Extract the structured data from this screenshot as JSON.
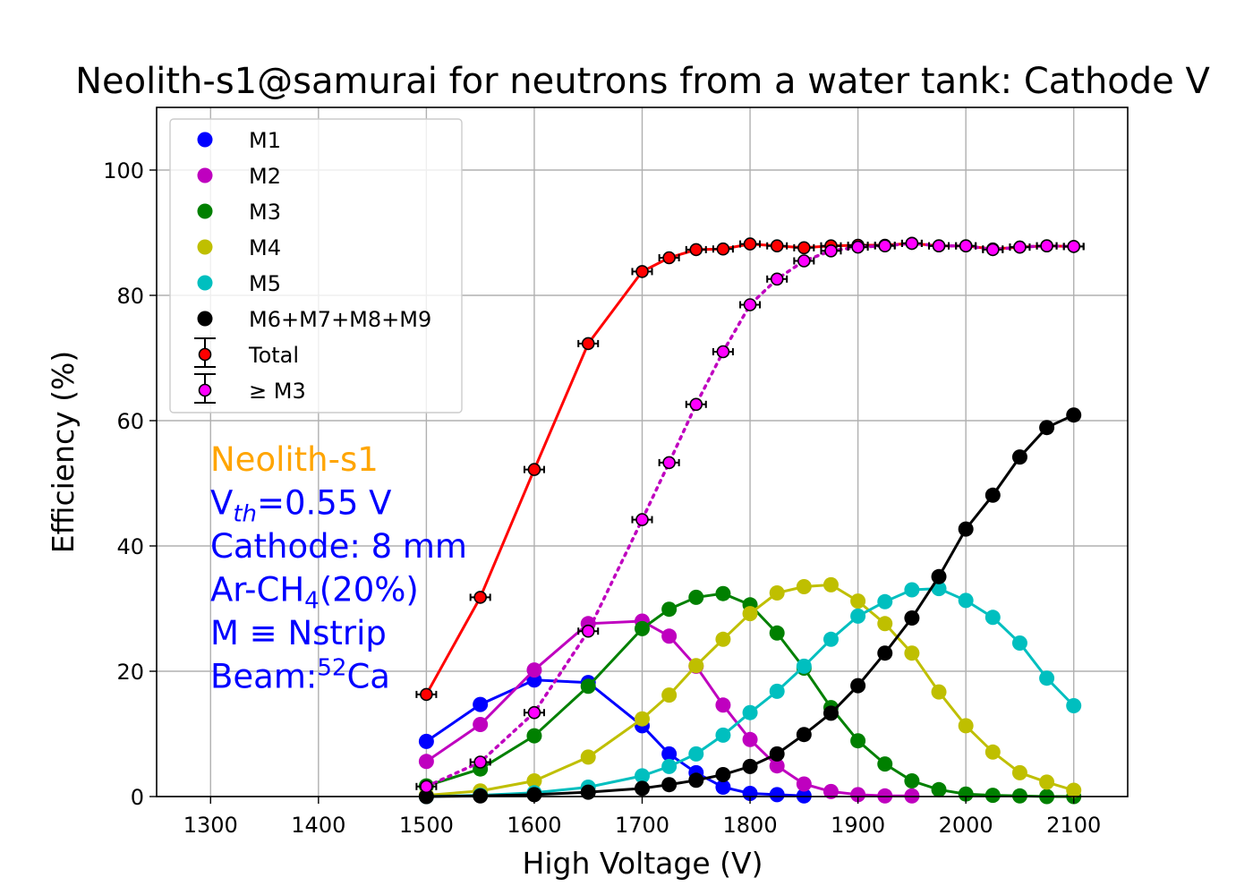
{
  "chart_data": {
    "type": "line",
    "title": "Neolith-s1@samurai for neutrons from a water tank: Cathode V",
    "xlabel": "High Voltage (V)",
    "ylabel": "Efficiency (%)",
    "xlim": [
      1250,
      2150
    ],
    "ylim": [
      0,
      110
    ],
    "xticks": [
      1300,
      1400,
      1500,
      1600,
      1700,
      1800,
      1900,
      2000,
      2100
    ],
    "yticks": [
      0,
      20,
      40,
      60,
      80,
      100
    ],
    "grid": true,
    "legend_position": "upper-left",
    "x": [
      1500,
      1550,
      1600,
      1650,
      1700,
      1725,
      1750,
      1775,
      1800,
      1825,
      1850,
      1875,
      1900,
      1925,
      1950,
      1975,
      2000,
      2025,
      2050,
      2075,
      2100
    ],
    "series": [
      {
        "name": "M1",
        "color": "#0000ff",
        "linestyle": "solid",
        "errorbars": false,
        "values": [
          8.8,
          14.7,
          18.6,
          18.2,
          11.3,
          6.8,
          3.8,
          1.5,
          0.5,
          0.3,
          0.1,
          null,
          null,
          null,
          null,
          null,
          null,
          null,
          null,
          null,
          null
        ]
      },
      {
        "name": "M2",
        "color": "#bf00bf",
        "linestyle": "solid",
        "errorbars": false,
        "values": [
          5.6,
          11.5,
          20.2,
          27.6,
          28.0,
          25.6,
          20.8,
          14.6,
          9.1,
          4.9,
          2.0,
          0.8,
          0.3,
          0.1,
          0.1,
          null,
          null,
          null,
          null,
          null,
          null
        ]
      },
      {
        "name": "M3",
        "color": "#008000",
        "linestyle": "solid",
        "errorbars": false,
        "values": [
          1.7,
          4.4,
          9.7,
          17.6,
          26.8,
          29.9,
          31.8,
          32.4,
          30.6,
          26.1,
          20.5,
          14.2,
          8.9,
          5.2,
          2.5,
          1.1,
          0.4,
          0.2,
          0.1,
          0.0,
          0.0
        ]
      },
      {
        "name": "M4",
        "color": "#bfbf00",
        "linestyle": "solid",
        "errorbars": false,
        "values": [
          0.2,
          0.9,
          2.5,
          6.3,
          12.4,
          16.2,
          20.9,
          25.1,
          29.2,
          32.5,
          33.5,
          33.8,
          31.2,
          27.6,
          22.9,
          16.7,
          11.3,
          7.1,
          3.8,
          2.3,
          1.0
        ]
      },
      {
        "name": "M5",
        "color": "#00bfbf",
        "linestyle": "solid",
        "errorbars": false,
        "values": [
          0.0,
          0.2,
          0.6,
          1.5,
          3.3,
          4.8,
          6.8,
          9.8,
          13.4,
          16.8,
          20.8,
          25.1,
          28.8,
          31.1,
          33.0,
          33.2,
          31.3,
          28.6,
          24.5,
          18.9,
          14.5
        ]
      },
      {
        "name": "M6+M7+M8+M9",
        "color": "#000000",
        "linestyle": "solid",
        "errorbars": false,
        "values": [
          0.0,
          0.1,
          0.3,
          0.7,
          1.3,
          1.9,
          2.6,
          3.5,
          4.8,
          6.8,
          9.9,
          13.3,
          17.7,
          22.9,
          28.5,
          35.1,
          42.7,
          48.1,
          54.2,
          58.9,
          60.9
        ]
      },
      {
        "name": "Total",
        "color": "#ff0000",
        "linestyle": "solid",
        "errorbars": true,
        "values": [
          16.3,
          31.8,
          52.2,
          72.3,
          83.8,
          86.0,
          87.3,
          87.4,
          88.2,
          87.9,
          87.6,
          87.9,
          88.0,
          88.0,
          88.3,
          87.9,
          87.9,
          87.4,
          87.7,
          87.9,
          87.8
        ]
      },
      {
        "name": " ≥ M3",
        "color": "#ff00ff",
        "linecolor": "#bf00bf",
        "linestyle": "dotted",
        "errorbars": true,
        "values": [
          1.6,
          5.5,
          13.4,
          26.4,
          44.2,
          53.3,
          62.6,
          71.0,
          78.5,
          82.6,
          85.5,
          87.1,
          87.7,
          87.9,
          88.3,
          87.9,
          87.9,
          87.3,
          87.7,
          87.9,
          87.8
        ]
      }
    ],
    "annotations": [
      {
        "text": "Neolith-s1",
        "color": "#ffa500"
      },
      {
        "main": "V",
        "sub": "th",
        "rest": "=0.55 V",
        "color": "#0000ff"
      },
      {
        "text": "Cathode: 8 mm",
        "color": "#0000ff"
      },
      {
        "main": "Ar-CH",
        "sub": "4",
        "rest": "(20%)",
        "color": "#0000ff"
      },
      {
        "text": "M ≡ Nstrip",
        "color": "#0000ff"
      },
      {
        "main": "Beam:",
        "sup": "52",
        "rest": "Ca",
        "color": "#0000ff"
      }
    ]
  }
}
